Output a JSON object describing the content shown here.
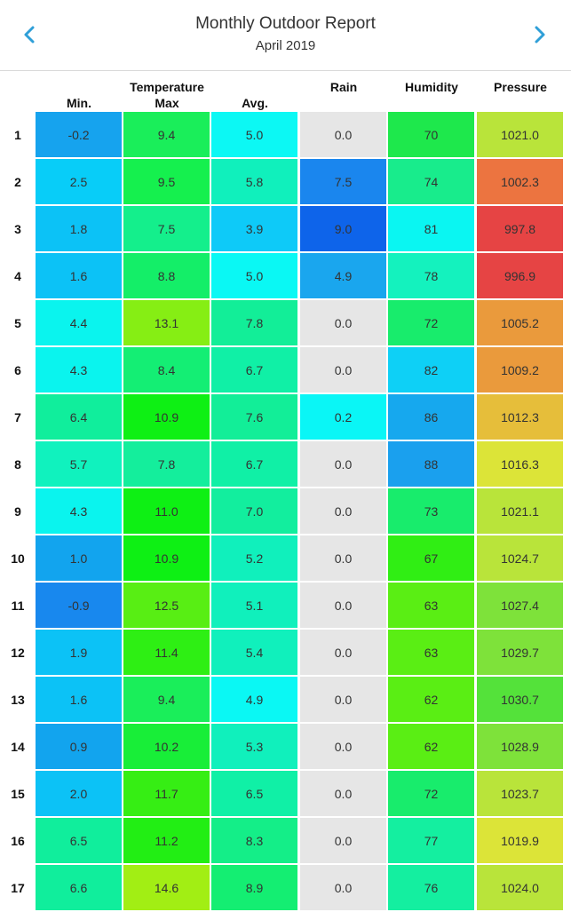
{
  "header": {
    "title": "Monthly Outdoor Report",
    "subtitle": "April 2019",
    "prev_icon": "chevron-left-icon",
    "next_icon": "chevron-right-icon",
    "accent_color": "#2f9fd8"
  },
  "columns": {
    "group_label": "Temperature",
    "min": "Min.",
    "max": "Max",
    "avg": "Avg.",
    "rain": "Rain",
    "humidity": "Humidity",
    "pressure": "Pressure"
  },
  "rows": [
    {
      "day": "1",
      "min": "-0.2",
      "max": "9.4",
      "avg": "5.0",
      "rain": "0.0",
      "humidity": "70",
      "pressure": "1021.0",
      "colors": {
        "min": "#16a3ee",
        "max": "#1aee5a",
        "avg": "#0cf8f4",
        "rain": "#e6e6e6",
        "humidity": "#1ee84c",
        "pressure": "#b9e43a"
      }
    },
    {
      "day": "2",
      "min": "2.5",
      "max": "9.5",
      "avg": "5.8",
      "rain": "7.5",
      "humidity": "74",
      "pressure": "1002.3",
      "colors": {
        "min": "#08cdf8",
        "max": "#15f04e",
        "avg": "#10f0bc",
        "rain": "#1a86ee",
        "humidity": "#18ec8c",
        "pressure": "#ec7440"
      }
    },
    {
      "day": "3",
      "min": "1.8",
      "max": "7.5",
      "avg": "3.9",
      "rain": "9.0",
      "humidity": "81",
      "pressure": "997.8",
      "colors": {
        "min": "#0cc2f6",
        "max": "#14ef8c",
        "avg": "#0ecaf8",
        "rain": "#0e64ea",
        "humidity": "#0af6f2",
        "pressure": "#e64444"
      }
    },
    {
      "day": "4",
      "min": "1.6",
      "max": "8.8",
      "avg": "5.0",
      "rain": "4.9",
      "humidity": "78",
      "pressure": "996.9",
      "colors": {
        "min": "#0cc2f6",
        "max": "#14ee68",
        "avg": "#0af8f4",
        "rain": "#1aa6ee",
        "humidity": "#14f2be",
        "pressure": "#e64444"
      }
    },
    {
      "day": "5",
      "min": "4.4",
      "max": "13.1",
      "avg": "7.8",
      "rain": "0.0",
      "humidity": "72",
      "pressure": "1005.2",
      "colors": {
        "min": "#0af4ee",
        "max": "#86ee14",
        "avg": "#12ee98",
        "rain": "#e6e6e6",
        "humidity": "#18ec6c",
        "pressure": "#ea9a3c"
      }
    },
    {
      "day": "6",
      "min": "4.3",
      "max": "8.4",
      "avg": "6.7",
      "rain": "0.0",
      "humidity": "82",
      "pressure": "1009.2",
      "colors": {
        "min": "#0af4ee",
        "max": "#14ee74",
        "avg": "#10f0a6",
        "rain": "#e6e6e6",
        "humidity": "#0ed0f6",
        "pressure": "#ea9a3c"
      }
    },
    {
      "day": "7",
      "min": "6.4",
      "max": "10.9",
      "avg": "7.6",
      "rain": "0.2",
      "humidity": "86",
      "pressure": "1012.3",
      "colors": {
        "min": "#10ee9c",
        "max": "#0ef014",
        "avg": "#12ee98",
        "rain": "#0af6f6",
        "humidity": "#16a8ee",
        "pressure": "#e6be3a"
      }
    },
    {
      "day": "8",
      "min": "5.7",
      "max": "7.8",
      "avg": "6.7",
      "rain": "0.0",
      "humidity": "88",
      "pressure": "1016.3",
      "colors": {
        "min": "#10f2be",
        "max": "#14ee9c",
        "avg": "#10f0a6",
        "rain": "#e6e6e6",
        "humidity": "#1aa0ee",
        "pressure": "#dce438"
      }
    },
    {
      "day": "9",
      "min": "4.3",
      "max": "11.0",
      "avg": "7.0",
      "rain": "0.0",
      "humidity": "73",
      "pressure": "1021.1",
      "colors": {
        "min": "#0af4ee",
        "max": "#0ef014",
        "avg": "#12ee9e",
        "rain": "#e6e6e6",
        "humidity": "#18ec6c",
        "pressure": "#b9e43a"
      }
    },
    {
      "day": "10",
      "min": "1.0",
      "max": "10.9",
      "avg": "5.2",
      "rain": "0.0",
      "humidity": "67",
      "pressure": "1024.7",
      "colors": {
        "min": "#12a4ee",
        "max": "#0ef014",
        "avg": "#10f0bc",
        "rain": "#e6e6e6",
        "humidity": "#30ee14",
        "pressure": "#b9e43a"
      }
    },
    {
      "day": "11",
      "min": "-0.9",
      "max": "12.5",
      "avg": "5.1",
      "rain": "0.0",
      "humidity": "63",
      "pressure": "1027.4",
      "colors": {
        "min": "#1888ee",
        "max": "#58ee14",
        "avg": "#10f0bc",
        "rain": "#e6e6e6",
        "humidity": "#5aee14",
        "pressure": "#7ee23a"
      }
    },
    {
      "day": "12",
      "min": "1.9",
      "max": "11.4",
      "avg": "5.4",
      "rain": "0.0",
      "humidity": "63",
      "pressure": "1029.7",
      "colors": {
        "min": "#0cc2f6",
        "max": "#2eef14",
        "avg": "#10f0bc",
        "rain": "#e6e6e6",
        "humidity": "#5aee14",
        "pressure": "#7ee23a"
      }
    },
    {
      "day": "13",
      "min": "1.6",
      "max": "9.4",
      "avg": "4.9",
      "rain": "0.0",
      "humidity": "62",
      "pressure": "1030.7",
      "colors": {
        "min": "#0cc2f6",
        "max": "#1aee5a",
        "avg": "#0af8f4",
        "rain": "#e6e6e6",
        "humidity": "#5aee14",
        "pressure": "#54e23a"
      }
    },
    {
      "day": "14",
      "min": "0.9",
      "max": "10.2",
      "avg": "5.3",
      "rain": "0.0",
      "humidity": "62",
      "pressure": "1028.9",
      "colors": {
        "min": "#12a4ee",
        "max": "#18ee38",
        "avg": "#10f0bc",
        "rain": "#e6e6e6",
        "humidity": "#5aee14",
        "pressure": "#7ee23a"
      }
    },
    {
      "day": "15",
      "min": "2.0",
      "max": "11.7",
      "avg": "6.5",
      "rain": "0.0",
      "humidity": "72",
      "pressure": "1023.7",
      "colors": {
        "min": "#0cc2f6",
        "max": "#36ee14",
        "avg": "#10f0a6",
        "rain": "#e6e6e6",
        "humidity": "#18ec6c",
        "pressure": "#b9e43a"
      }
    },
    {
      "day": "16",
      "min": "6.5",
      "max": "11.2",
      "avg": "8.3",
      "rain": "0.0",
      "humidity": "77",
      "pressure": "1019.9",
      "colors": {
        "min": "#10ee9c",
        "max": "#22ee14",
        "avg": "#14ee88",
        "rain": "#e6e6e6",
        "humidity": "#14efa0",
        "pressure": "#dce438"
      }
    },
    {
      "day": "17",
      "min": "6.6",
      "max": "14.6",
      "avg": "8.9",
      "rain": "0.0",
      "humidity": "76",
      "pressure": "1024.0",
      "colors": {
        "min": "#10ee9c",
        "max": "#a2ee14",
        "avg": "#14ee72",
        "rain": "#e6e6e6",
        "humidity": "#14efa0",
        "pressure": "#b9e43a"
      }
    }
  ]
}
